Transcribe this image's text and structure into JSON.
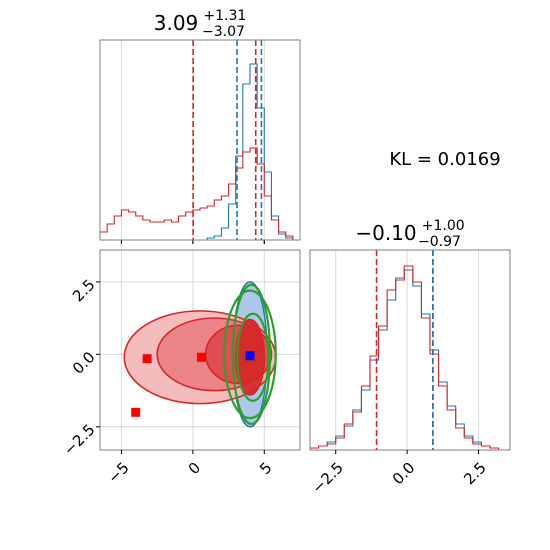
{
  "chart_data": [
    {
      "type": "histogram",
      "panel": "top-left",
      "title": {
        "value": "3.09",
        "upper": "+1.31",
        "lower": "−3.07"
      },
      "xlim": [
        -6.5,
        7.5
      ],
      "x_ticks": [
        -5,
        0,
        5
      ],
      "grid": true,
      "series": [
        {
          "color": "#1f77b4",
          "style": "step",
          "bins": [
            [
              0.5,
              0
            ],
            [
              1,
              0.01
            ],
            [
              1.5,
              0.02
            ],
            [
              2,
              0.06
            ],
            [
              2.5,
              0.18
            ],
            [
              3,
              0.42
            ],
            [
              3.5,
              0.78
            ],
            [
              4,
              0.88
            ],
            [
              4.5,
              0.66
            ],
            [
              5,
              0.34
            ],
            [
              5.5,
              0.12
            ],
            [
              6,
              0.03
            ],
            [
              6.5,
              0.01
            ],
            [
              7,
              0
            ]
          ]
        },
        {
          "color": "#d62728",
          "style": "step",
          "bins": [
            [
              -6.5,
              0.04
            ],
            [
              -6,
              0.08
            ],
            [
              -5.5,
              0.12
            ],
            [
              -5,
              0.15
            ],
            [
              -4.5,
              0.14
            ],
            [
              -4,
              0.12
            ],
            [
              -3.5,
              0.1
            ],
            [
              -3,
              0.09
            ],
            [
              -2.5,
              0.09
            ],
            [
              -2,
              0.1
            ],
            [
              -1.5,
              0.09
            ],
            [
              -1,
              0.12
            ],
            [
              -0.5,
              0.14
            ],
            [
              0,
              0.15
            ],
            [
              0.5,
              0.16
            ],
            [
              1,
              0.17
            ],
            [
              1.5,
              0.2
            ],
            [
              2,
              0.22
            ],
            [
              2.5,
              0.28
            ],
            [
              3,
              0.36
            ],
            [
              3.5,
              0.44
            ],
            [
              4,
              0.46
            ],
            [
              4.5,
              0.38
            ],
            [
              5,
              0.22
            ],
            [
              5.5,
              0.1
            ],
            [
              6,
              0.04
            ],
            [
              6.5,
              0.02
            ],
            [
              7,
              0
            ]
          ]
        }
      ],
      "vlines": [
        {
          "x": 0.02,
          "color": "#d62728"
        },
        {
          "x": 4.4,
          "color": "#d62728"
        },
        {
          "x": 3.09,
          "color": "#1f77b4"
        },
        {
          "x": 4.8,
          "color": "#1f77b4"
        }
      ]
    },
    {
      "type": "contour",
      "panel": "bottom-left",
      "xlim": [
        -6.5,
        7.5
      ],
      "ylim": [
        -3.3,
        3.6
      ],
      "x_ticks": [
        -5,
        0,
        5
      ],
      "y_ticks": [
        -2.5,
        0.0,
        2.5
      ],
      "x_tick_labels": [
        "−5",
        "0",
        "5"
      ],
      "y_tick_labels": [
        "−2.5",
        "0.0",
        "2.5"
      ],
      "grid": true,
      "red_regions": [
        {
          "cx": 0.5,
          "cy": -0.1,
          "rx": 5.3,
          "ry": 1.6,
          "fill": "#f4b6b8"
        },
        {
          "cx": 1.5,
          "cy": 0.0,
          "rx": 4.0,
          "ry": 1.25,
          "fill": "#e97f83"
        },
        {
          "cx": 3.2,
          "cy": 0.0,
          "rx": 2.3,
          "ry": 1.0,
          "fill": "#de4a4f"
        },
        {
          "cx": 4.0,
          "cy": -0.1,
          "rx": 1.0,
          "ry": 1.3,
          "fill": "#d62728"
        }
      ],
      "green_ellipses": [
        {
          "cx": 4.1,
          "cy": 0.0,
          "rx": 1.3,
          "ry": 2.4
        },
        {
          "cx": 4.0,
          "cy": 0.0,
          "rx": 1.8,
          "ry": 2.2
        },
        {
          "cx": 4.2,
          "cy": -0.1,
          "rx": 1.1,
          "ry": 1.5
        }
      ],
      "blue_region": {
        "cx": 4.0,
        "cy": 0.0,
        "rx": 1.2,
        "ry": 2.5
      },
      "markers": [
        {
          "x": -3.2,
          "y": -0.15,
          "color": "#ff0000"
        },
        {
          "x": -4.0,
          "y": -2.0,
          "color": "#ff0000"
        },
        {
          "x": 0.6,
          "y": -0.1,
          "color": "#ff0000"
        },
        {
          "x": 4.0,
          "y": -0.05,
          "color": "#0000ff"
        }
      ]
    },
    {
      "type": "histogram",
      "panel": "bottom-right",
      "title": {
        "value": "−0.10",
        "upper": "+1.00",
        "lower": "−0.97"
      },
      "xlim": [
        -3.4,
        3.6
      ],
      "x_ticks": [
        -2.5,
        0.0,
        2.5
      ],
      "x_tick_labels": [
        "−2.5",
        "0.0",
        "2.5"
      ],
      "grid": true,
      "series": [
        {
          "color": "#1f77b4",
          "style": "step",
          "bins": [
            [
              -3.4,
              0.01
            ],
            [
              -3.1,
              0.02
            ],
            [
              -2.8,
              0.04
            ],
            [
              -2.5,
              0.07
            ],
            [
              -2.2,
              0.12
            ],
            [
              -1.9,
              0.2
            ],
            [
              -1.6,
              0.3
            ],
            [
              -1.3,
              0.45
            ],
            [
              -1.0,
              0.6
            ],
            [
              -0.7,
              0.75
            ],
            [
              -0.4,
              0.86
            ],
            [
              -0.1,
              0.9
            ],
            [
              0.2,
              0.82
            ],
            [
              0.5,
              0.68
            ],
            [
              0.8,
              0.5
            ],
            [
              1.1,
              0.34
            ],
            [
              1.4,
              0.22
            ],
            [
              1.7,
              0.13
            ],
            [
              2.0,
              0.07
            ],
            [
              2.3,
              0.04
            ],
            [
              2.6,
              0.02
            ],
            [
              2.9,
              0.01
            ],
            [
              3.2,
              0
            ]
          ]
        },
        {
          "color": "#d62728",
          "style": "step",
          "bins": [
            [
              -3.4,
              0.01
            ],
            [
              -3.1,
              0.02
            ],
            [
              -2.8,
              0.03
            ],
            [
              -2.5,
              0.06
            ],
            [
              -2.2,
              0.13
            ],
            [
              -1.9,
              0.19
            ],
            [
              -1.6,
              0.32
            ],
            [
              -1.3,
              0.47
            ],
            [
              -1.0,
              0.62
            ],
            [
              -0.7,
              0.8
            ],
            [
              -0.4,
              0.85
            ],
            [
              -0.1,
              0.92
            ],
            [
              0.2,
              0.84
            ],
            [
              0.5,
              0.66
            ],
            [
              0.8,
              0.48
            ],
            [
              1.1,
              0.32
            ],
            [
              1.4,
              0.2
            ],
            [
              1.7,
              0.11
            ],
            [
              2.0,
              0.06
            ],
            [
              2.3,
              0.03
            ],
            [
              2.6,
              0.02
            ],
            [
              2.9,
              0.01
            ],
            [
              3.2,
              0
            ]
          ]
        }
      ],
      "vlines": [
        {
          "x": -1.07,
          "color": "#d62728"
        },
        {
          "x": 0.9,
          "color": "#d62728"
        },
        {
          "x": 0.9,
          "color": "#1f77b4"
        }
      ]
    }
  ],
  "annotation": {
    "text": "KL = 0.0169"
  },
  "top_left_ticks": [
    "−5",
    "0",
    "5"
  ]
}
